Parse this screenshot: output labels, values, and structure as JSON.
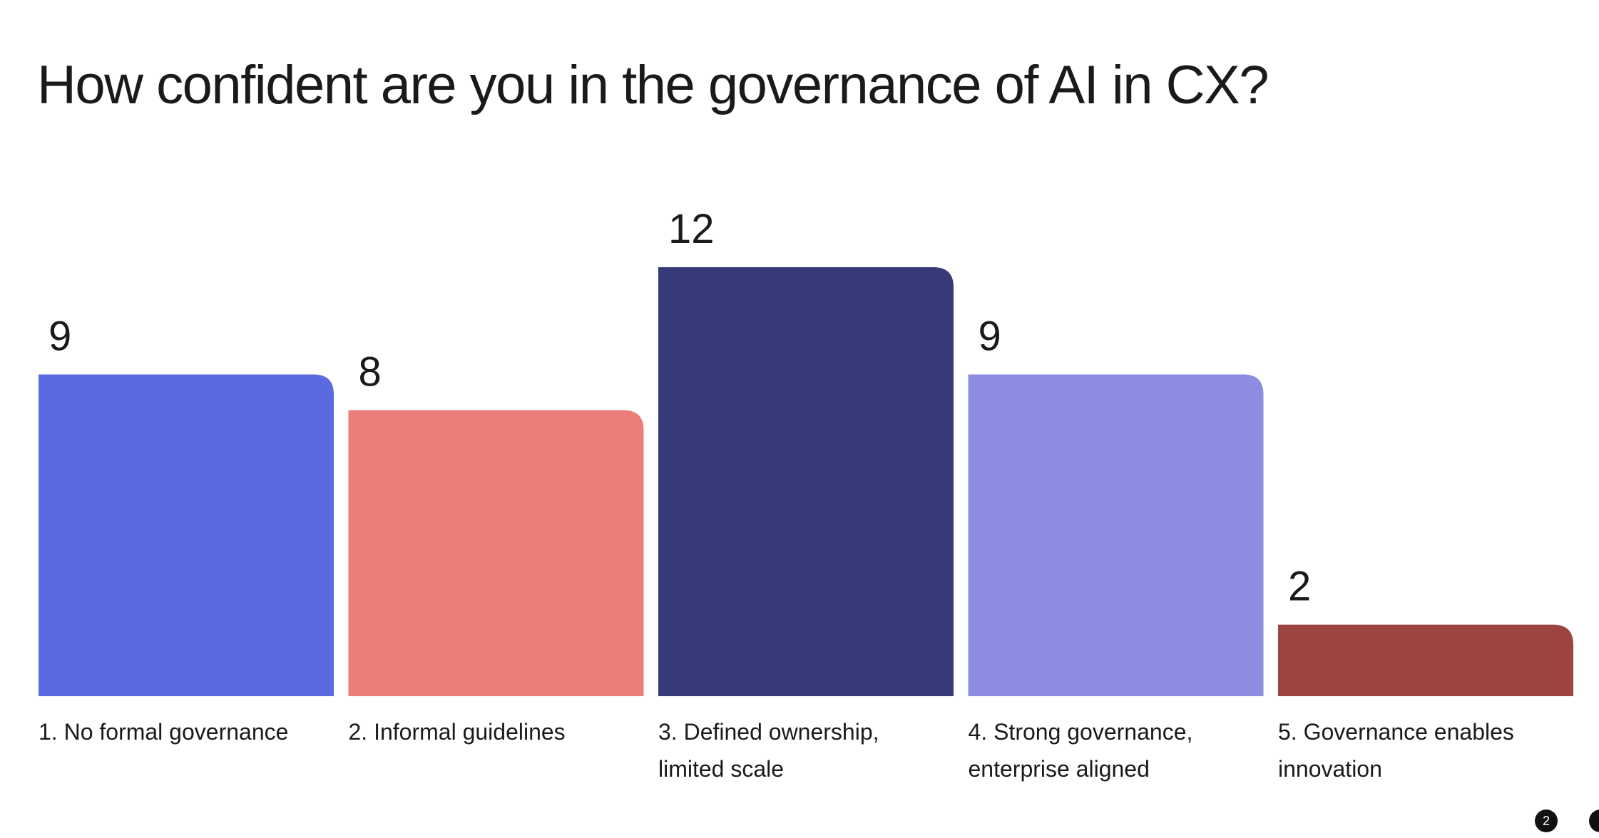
{
  "chart_data": {
    "type": "bar",
    "title": "How confident are you in the governance of AI in CX?",
    "categories": [
      [
        "1. No formal governance"
      ],
      [
        "2. Informal guidelines"
      ],
      [
        "3. Defined ownership,",
        "limited scale"
      ],
      [
        "4. Strong governance,",
        "enterprise aligned"
      ],
      [
        "5. Governance enables",
        "innovation"
      ]
    ],
    "values": [
      9,
      8,
      12,
      9,
      2
    ],
    "colors": [
      "#5c6ae0",
      "#ed7d78",
      "#363b78",
      "#8c8ce0",
      "#9c4440"
    ],
    "ylim": [
      0,
      12
    ],
    "grid": false,
    "legend": "none"
  },
  "pager": {
    "current": "2"
  }
}
